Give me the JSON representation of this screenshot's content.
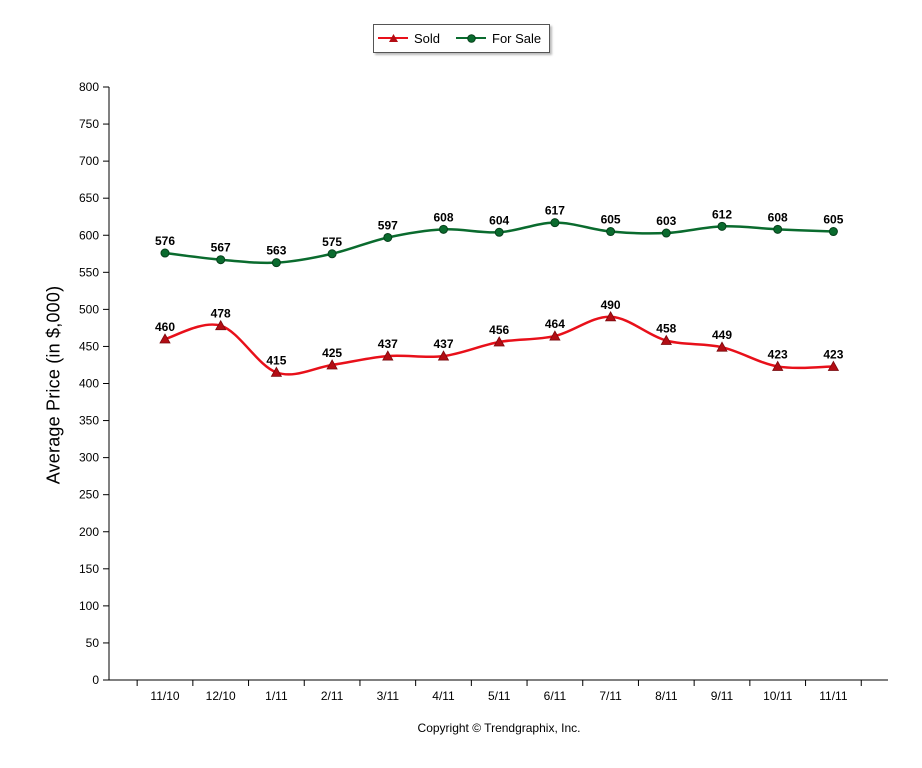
{
  "chart_data": {
    "type": "line",
    "categories": [
      "11/10",
      "12/10",
      "1/11",
      "2/11",
      "3/11",
      "4/11",
      "5/11",
      "6/11",
      "7/11",
      "8/11",
      "9/11",
      "10/11",
      "11/11"
    ],
    "series": [
      {
        "name": "Sold",
        "color": "#e8101a",
        "marker": "triangle",
        "values": [
          460,
          478,
          415,
          425,
          437,
          437,
          456,
          464,
          490,
          458,
          449,
          423,
          423
        ]
      },
      {
        "name": "For Sale",
        "color": "#0a6b2e",
        "marker": "circle",
        "values": [
          576,
          567,
          563,
          575,
          597,
          608,
          604,
          617,
          605,
          603,
          612,
          608,
          605
        ]
      }
    ],
    "title": "",
    "xlabel": "",
    "ylabel": "Average Price  (in $,000)",
    "ylim": [
      0,
      800
    ],
    "yticks": [
      0,
      50,
      100,
      150,
      200,
      250,
      300,
      350,
      400,
      450,
      500,
      550,
      600,
      650,
      700,
      750,
      800
    ],
    "grid": false,
    "legend_position": "top-center",
    "data_labels": true
  },
  "footer": {
    "copyright": "Copyright © Trendgraphix, Inc."
  }
}
